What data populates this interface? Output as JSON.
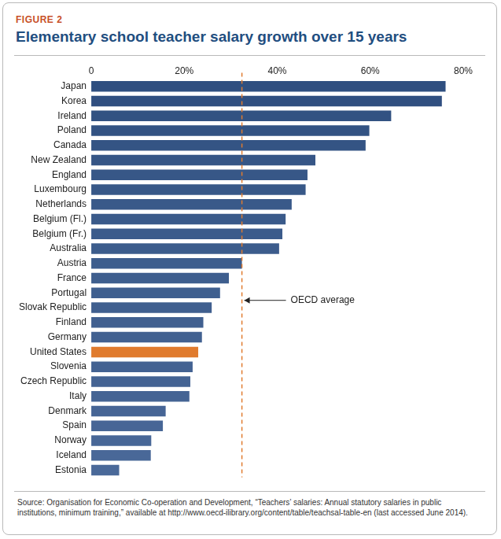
{
  "chart_data": {
    "type": "bar",
    "figure_label": "FIGURE 2",
    "title": "Elementary school teacher salary growth over 15 years",
    "source": "Source: Organisation for Economic Co-operation and Development, “Teachers’ salaries: Annual statutory salaries in public institutions, minimum training,” available at http://www.oecd-ilibrary.org/content/table/teachsal-table-en (last accessed June 2014).",
    "orientation": "horizontal",
    "categories": [
      "Japan",
      "Korea",
      "Ireland",
      "Poland",
      "Canada",
      "New Zealand",
      "England",
      "Luxembourg",
      "Netherlands",
      "Belgium (Fl.)",
      "Belgium (Fr.)",
      "Australia",
      "Austria",
      "France",
      "Portugal",
      "Slovak Republic",
      "Finland",
      "Germany",
      "United States",
      "Slovenia",
      "Czech Republic",
      "Italy",
      "Denmark",
      "Spain",
      "Norway",
      "Iceland",
      "Estonia"
    ],
    "values": [
      76.2,
      75.4,
      64.5,
      59.8,
      59,
      48.2,
      46.5,
      46.1,
      43.1,
      41.8,
      41.1,
      40.4,
      32.4,
      29.6,
      27.7,
      25.9,
      24.1,
      23.8,
      23,
      21.8,
      21.3,
      21.1,
      16,
      15.4,
      12.9,
      12.8,
      6
    ],
    "colors": [
      "#2f4f80",
      "#304f80",
      "#325282",
      "#335383",
      "#345484",
      "#365686",
      "#375787",
      "#385888",
      "#395989",
      "#3a5a8a",
      "#3b5b8b",
      "#3c5c8c",
      "#3d5d8d",
      "#3e5e8e",
      "#3f5f8f",
      "#405f8f",
      "#416090",
      "#426191",
      "#e07b2e",
      "#436292",
      "#446393",
      "#456494",
      "#466595",
      "#476696",
      "#486797",
      "#496898",
      "#4a6999"
    ],
    "xlim": [
      0,
      80
    ],
    "xticks": [
      0,
      {
        "value": 20,
        "label": "20%"
      },
      {
        "value": 40,
        "label": "40%"
      },
      {
        "value": 60,
        "label": "60%"
      },
      {
        "value": 80,
        "label": "80%"
      }
    ],
    "grid": false,
    "annotations": [
      {
        "text": "OECD average",
        "value": 32.4
      }
    ]
  }
}
